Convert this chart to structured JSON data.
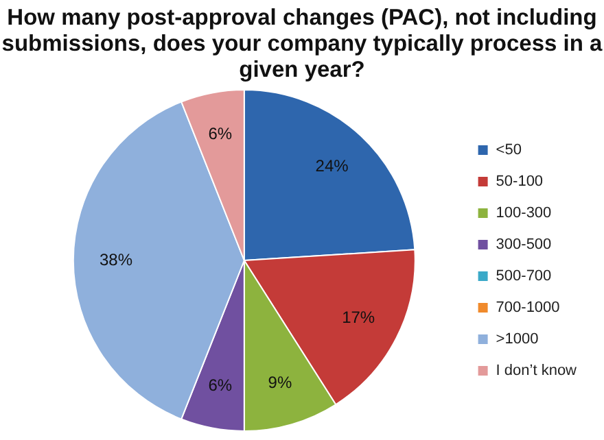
{
  "chart_data": {
    "type": "pie",
    "title": "How many post-approval changes (PAC), not including submissions, does your company typically process in a given year?",
    "categories": [
      "<50",
      "50-100",
      "100-300",
      "300-500",
      "500-700",
      "700-1000",
      ">1000",
      "I don’t know"
    ],
    "values": [
      24,
      17,
      9,
      6,
      0,
      0,
      38,
      6
    ],
    "colors": [
      "#2e66ad",
      "#c43b38",
      "#8db33e",
      "#7050a0",
      "#3ba9c8",
      "#f08a2c",
      "#8fb0dc",
      "#e39a9a"
    ],
    "value_labels": [
      "24%",
      "17%",
      "9%",
      "6%",
      null,
      null,
      "38%",
      "6%"
    ],
    "legend": "right"
  }
}
